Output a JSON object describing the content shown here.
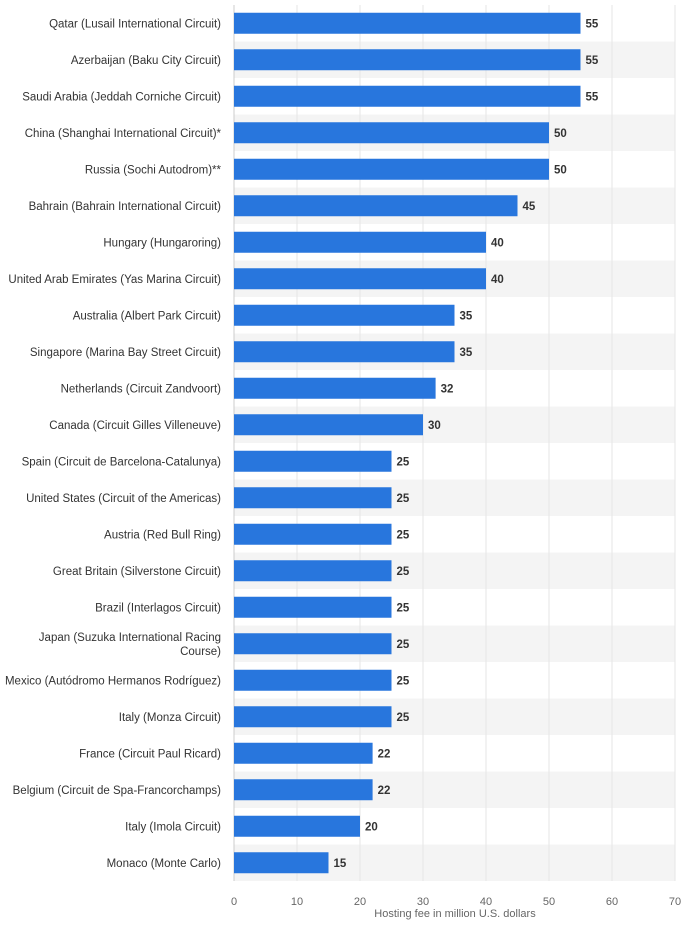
{
  "colors": {
    "bar": "#2876dd",
    "band": "#f4f4f4",
    "grid": "#e6e6e6",
    "axis": "#cccccc",
    "text": "#333333",
    "tick_text": "#666666"
  },
  "chart_data": {
    "type": "bar",
    "orientation": "horizontal",
    "categories": [
      "Qatar (Lusail International Circuit)",
      "Azerbaijan (Baku City Circuit)",
      "Saudi Arabia (Jeddah Corniche Circuit)",
      "China (Shanghai International Circuit)*",
      "Russia (Sochi Autodrom)**",
      "Bahrain (Bahrain International Circuit)",
      "Hungary (Hungaroring)",
      "United Arab Emirates (Yas Marina Circuit)",
      "Australia (Albert Park Circuit)",
      "Singapore (Marina Bay Street Circuit)",
      "Netherlands (Circuit Zandvoort)",
      "Canada (Circuit Gilles Villeneuve)",
      "Spain (Circuit de Barcelona-Catalunya)",
      "United States (Circuit of the Americas)",
      "Austria (Red Bull Ring)",
      "Great Britain (Silverstone Circuit)",
      "Brazil (Interlagos Circuit)",
      "Japan (Suzuka International Racing Course)",
      "Mexico (Autódromo Hermanos Rodríguez)",
      "Italy (Monza Circuit)",
      "France (Circuit Paul Ricard)",
      "Belgium (Circuit de Spa-Francorchamps)",
      "Italy (Imola Circuit)",
      "Monaco (Monte Carlo)"
    ],
    "values": [
      55,
      55,
      55,
      50,
      50,
      45,
      40,
      40,
      35,
      35,
      32,
      30,
      25,
      25,
      25,
      25,
      25,
      25,
      25,
      25,
      22,
      22,
      20,
      15
    ],
    "xlabel": "Hosting fee in million U.S. dollars",
    "ylabel": "",
    "title": "",
    "xlim": [
      0,
      70
    ],
    "xticks": [
      0,
      10,
      20,
      30,
      40,
      50,
      60,
      70
    ],
    "grid": true,
    "data_labels": true,
    "legend": "none"
  }
}
